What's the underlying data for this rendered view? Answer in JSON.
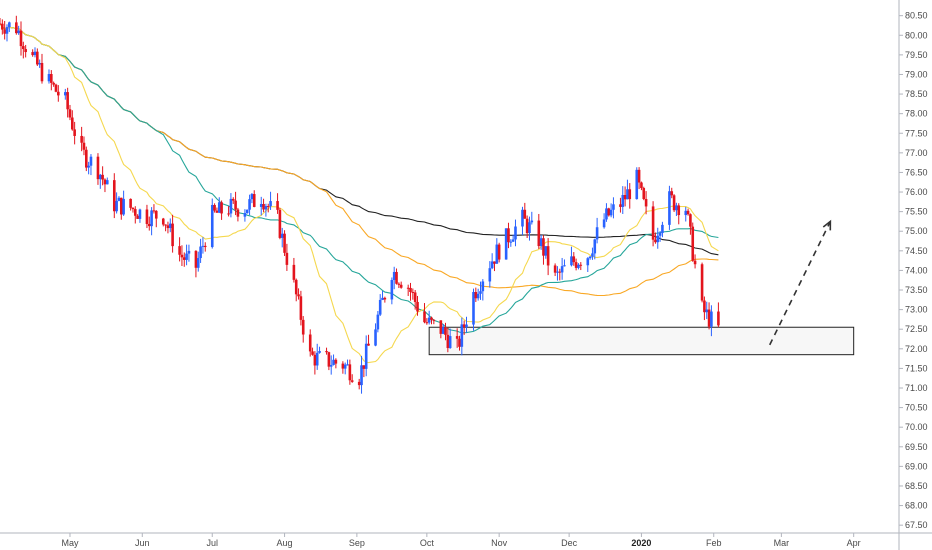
{
  "chart_data": {
    "type": "candlestick",
    "instrument_note": "",
    "y_axis": {
      "position": "right",
      "ylim": [
        67.3,
        80.9
      ],
      "ticks": [
        67.5,
        68.0,
        68.5,
        69.0,
        69.5,
        70.0,
        70.5,
        71.0,
        71.5,
        72.0,
        72.5,
        73.0,
        73.5,
        74.0,
        74.5,
        75.0,
        75.5,
        76.0,
        76.5,
        77.0,
        77.5,
        78.0,
        78.5,
        79.0,
        79.5,
        80.0,
        80.5
      ],
      "tick_labels": [
        "67.50",
        "68.00",
        "68.50",
        "69.00",
        "69.50",
        "70.00",
        "70.50",
        "71.00",
        "71.50",
        "72.00",
        "72.50",
        "73.00",
        "73.50",
        "74.00",
        "74.50",
        "75.00",
        "75.50",
        "76.00",
        "76.50",
        "77.00",
        "77.50",
        "78.00",
        "78.50",
        "79.00",
        "79.50",
        "80.00",
        "80.50"
      ]
    },
    "x_axis": {
      "start": "2019-04-01",
      "end": "2020-04-20",
      "ticks": [
        {
          "date": "2019-05-01",
          "label": "May",
          "bold": false
        },
        {
          "date": "2019-06-01",
          "label": "Jun",
          "bold": false
        },
        {
          "date": "2019-07-01",
          "label": "Jul",
          "bold": false
        },
        {
          "date": "2019-08-01",
          "label": "Aug",
          "bold": false
        },
        {
          "date": "2019-09-01",
          "label": "Sep",
          "bold": false
        },
        {
          "date": "2019-10-01",
          "label": "Oct",
          "bold": false
        },
        {
          "date": "2019-11-01",
          "label": "Nov",
          "bold": false
        },
        {
          "date": "2019-12-01",
          "label": "Dec",
          "bold": false
        },
        {
          "date": "2020-01-01",
          "label": "2020",
          "bold": true
        },
        {
          "date": "2020-02-01",
          "label": "Feb",
          "bold": false
        },
        {
          "date": "2020-03-01",
          "label": "Mar",
          "bold": false
        },
        {
          "date": "2020-04-01",
          "label": "Apr",
          "bold": false
        }
      ]
    },
    "grid": false,
    "colors": {
      "up": "#2962ff",
      "down": "#e3141d",
      "ma_fast": "#f5d84f",
      "ma_mid": "#26a69a",
      "ma_slow": "#f9a825",
      "ma_long": "#222222",
      "zone_fill": "#f7f7f7",
      "zone_stroke": "#222222",
      "projection": "#333333"
    },
    "price_path": [
      [
        "2019-04-01",
        80.3
      ],
      [
        "2019-04-08",
        80.2
      ],
      [
        "2019-04-15",
        79.4
      ],
      [
        "2019-04-22",
        78.8
      ],
      [
        "2019-04-29",
        78.3
      ],
      [
        "2019-05-06",
        77.0
      ],
      [
        "2019-05-13",
        76.6
      ],
      [
        "2019-05-20",
        75.7
      ],
      [
        "2019-05-27",
        75.6
      ],
      [
        "2019-06-03",
        75.4
      ],
      [
        "2019-06-10",
        75.4
      ],
      [
        "2019-06-17",
        74.4
      ],
      [
        "2019-06-24",
        74.1
      ],
      [
        "2019-07-01",
        75.4
      ],
      [
        "2019-07-08",
        75.6
      ],
      [
        "2019-07-15",
        75.6
      ],
      [
        "2019-07-22",
        75.9
      ],
      [
        "2019-07-29",
        75.3
      ],
      [
        "2019-08-05",
        73.6
      ],
      [
        "2019-08-12",
        71.8
      ],
      [
        "2019-08-19",
        71.7
      ],
      [
        "2019-08-26",
        71.6
      ],
      [
        "2019-09-02",
        71.3
      ],
      [
        "2019-09-09",
        72.6
      ],
      [
        "2019-09-16",
        74.0
      ],
      [
        "2019-09-23",
        73.6
      ],
      [
        "2019-09-30",
        72.7
      ],
      [
        "2019-10-07",
        72.5
      ],
      [
        "2019-10-14",
        72.0
      ],
      [
        "2019-10-21",
        73.4
      ],
      [
        "2019-10-28",
        74.2
      ],
      [
        "2019-11-04",
        74.8
      ],
      [
        "2019-11-11",
        75.3
      ],
      [
        "2019-11-18",
        74.8
      ],
      [
        "2019-11-25",
        73.8
      ],
      [
        "2019-12-02",
        74.2
      ],
      [
        "2019-12-09",
        74.4
      ],
      [
        "2019-12-16",
        75.3
      ],
      [
        "2019-12-23",
        75.7
      ],
      [
        "2019-12-30",
        76.3
      ],
      [
        "2020-01-06",
        74.8
      ],
      [
        "2020-01-13",
        75.8
      ],
      [
        "2020-01-20",
        75.6
      ],
      [
        "2020-01-27",
        73.0
      ],
      [
        "2020-02-03",
        72.5
      ]
    ],
    "zone": {
      "x_start": "2019-10-02",
      "x_end": "2020-04-01",
      "y_low": 71.85,
      "y_high": 72.55
    },
    "projection_arrow": {
      "from": [
        "2020-02-25",
        72.1
      ],
      "to": [
        "2020-03-22",
        75.25
      ]
    }
  }
}
